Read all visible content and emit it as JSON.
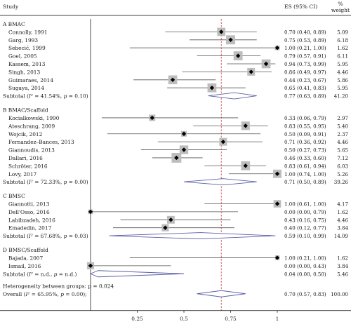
{
  "chart_data": {
    "type": "forest",
    "headers": {
      "study": "Study",
      "es": "ES (95% CI)",
      "weight_line1": "%",
      "weight_line2": "weight"
    },
    "x_ticks": [
      0.25,
      0.5,
      0.75,
      1
    ],
    "x_tick_labels": [
      "0.25",
      "0.5",
      "0.75",
      "1"
    ],
    "xlim": [
      0,
      1
    ],
    "overall_line": 0.7,
    "groups": [
      {
        "title": "A BMAC",
        "studies": [
          {
            "name": "Connolly, 1991",
            "es": 0.7,
            "lo": 0.4,
            "hi": 0.89,
            "ci_text": "0.70 (0.40, 0.89)",
            "weight": "5.09"
          },
          {
            "name": "Garg, 1993",
            "es": 0.75,
            "lo": 0.53,
            "hi": 0.89,
            "ci_text": "0.75 (0.53, 0.89)",
            "weight": "6.18"
          },
          {
            "name": "Sebecić, 1999",
            "es": 1.0,
            "lo": 0.21,
            "hi": 1.0,
            "ci_text": "1.00 (0.21, 1.00)",
            "weight": "1.62"
          },
          {
            "name": "Goel, 2005",
            "es": 0.79,
            "lo": 0.57,
            "hi": 0.91,
            "ci_text": "0.79 (0.57, 0.91)",
            "weight": "6.11"
          },
          {
            "name": "Kassem, 2013",
            "es": 0.94,
            "lo": 0.73,
            "hi": 0.99,
            "ci_text": "0.94 (0.73, 0.99)",
            "weight": "5.95"
          },
          {
            "name": "Singh, 2013",
            "es": 0.86,
            "lo": 0.49,
            "hi": 0.97,
            "ci_text": "0.86 (0.49, 0.97)",
            "weight": "4.46"
          },
          {
            "name": "Guimaraes, 2014",
            "es": 0.44,
            "lo": 0.23,
            "hi": 0.67,
            "ci_text": "0.44 (0.23, 0.67)",
            "weight": "5.86"
          },
          {
            "name": "Sugaya, 2014",
            "es": 0.65,
            "lo": 0.41,
            "hi": 0.83,
            "ci_text": "0.65 (0.41, 0.83)",
            "weight": "5.95"
          }
        ],
        "subtotal": {
          "label": "Subtotal",
          "het": "(I² = 41.54%, p = 0.10)",
          "es": 0.77,
          "lo": 0.63,
          "hi": 0.89,
          "ci_text": "0.77 (0.63, 0.89)",
          "weight": "41.20"
        }
      },
      {
        "title": "B BMAC/Scaffold",
        "studies": [
          {
            "name": "Kocialkowski, 1990",
            "es": 0.33,
            "lo": 0.06,
            "hi": 0.79,
            "ci_text": "0.33 (0.06, 0.79)",
            "weight": "2.97"
          },
          {
            "name": "Ateschrang, 2009",
            "es": 0.83,
            "lo": 0.55,
            "hi": 0.95,
            "ci_text": "0.83 (0.55, 0.95)",
            "weight": "5.40"
          },
          {
            "name": "Wojcik, 2012",
            "es": 0.5,
            "lo": 0.09,
            "hi": 0.91,
            "ci_text": "0.50 (0.09, 0.91)",
            "weight": "2.37"
          },
          {
            "name": "Fernandez–Bances, 2013",
            "es": 0.71,
            "lo": 0.36,
            "hi": 0.92,
            "ci_text": "0.71 (0.36, 0.92)",
            "weight": "4.46"
          },
          {
            "name": "Giannoudis, 2013",
            "es": 0.5,
            "lo": 0.27,
            "hi": 0.73,
            "ci_text": "0.50 (0.27, 0.73)",
            "weight": "5.65"
          },
          {
            "name": "Dallari, 2016",
            "es": 0.46,
            "lo": 0.33,
            "hi": 0.6,
            "ci_text": "0.46 (0.33, 0.60)",
            "weight": "7.12"
          },
          {
            "name": "Schröter, 2016",
            "es": 0.83,
            "lo": 0.61,
            "hi": 0.94,
            "ci_text": "0.83 (0.61, 0.94)",
            "weight": "6.03"
          },
          {
            "name": "Lovy, 2017",
            "es": 1.0,
            "lo": 0.74,
            "hi": 1.0,
            "ci_text": "1.00 (0.74, 1.00)",
            "weight": "5.26"
          }
        ],
        "subtotal": {
          "label": "Subtotal",
          "het": "(I² = 72.33%, p = 0.00)",
          "es": 0.71,
          "lo": 0.5,
          "hi": 0.89,
          "ci_text": "0.71 (0.50, 0.89)",
          "weight": "39.26"
        }
      },
      {
        "title": "C BMSC",
        "studies": [
          {
            "name": "Giannotti, 2013",
            "es": 1.0,
            "lo": 0.61,
            "hi": 1.0,
            "ci_text": "1.00 (0.61, 1.00)",
            "weight": "4.17"
          },
          {
            "name": "Dell'Osso, 2016",
            "es": 0.0,
            "lo": 0.0,
            "hi": 0.79,
            "ci_text": "0.00 (0.00, 0.79)",
            "weight": "1.62"
          },
          {
            "name": "Labibzadeh, 2016",
            "es": 0.43,
            "lo": 0.16,
            "hi": 0.75,
            "ci_text": "0.43 (0.16, 0.75)",
            "weight": "4.46"
          },
          {
            "name": "Emadedin, 2017",
            "es": 0.4,
            "lo": 0.12,
            "hi": 0.77,
            "ci_text": "0.40 (0.12, 0.77)",
            "weight": "3.84"
          }
        ],
        "subtotal": {
          "label": "Subtotal",
          "het": "(I² = 67.68%, p = 0.03)",
          "es": 0.59,
          "lo": 0.1,
          "hi": 0.99,
          "ci_text": "0.59 (0.10, 0.99)",
          "weight": "14.09"
        }
      },
      {
        "title": "D BMSC/Scaffold",
        "studies": [
          {
            "name": "Bajada, 2007",
            "es": 1.0,
            "lo": 0.21,
            "hi": 1.0,
            "ci_text": "1.00 (0.21, 1.00)",
            "weight": "1.62"
          },
          {
            "name": "Ismail, 2016",
            "es": 0.0,
            "lo": 0.0,
            "hi": 0.43,
            "ci_text": "0.00 (0.00, 0.43)",
            "weight": "3.84"
          }
        ],
        "subtotal": {
          "label": "Subtotal",
          "het": "(I² = n.d., p = n.d.)",
          "es": 0.04,
          "lo": 0.0,
          "hi": 0.5,
          "ci_text": "0.04 (0.00, 0.50)",
          "weight": "5.46"
        }
      }
    ],
    "heterogeneity_between": "Heterogeneity between groups: p = 0.024",
    "overall": {
      "label": "Overall",
      "het": "(I² = 65.95%, p = 0.00);",
      "es": 0.7,
      "lo": 0.57,
      "hi": 0.83,
      "ci_text": "0.70 (0.57, 0.83)",
      "weight": "100.00"
    },
    "colors": {
      "diamond": "#5a5fa6",
      "overall_line": "#c0392b",
      "box": "#bdbdbd",
      "marker": "#000000",
      "line": "#555555"
    }
  }
}
